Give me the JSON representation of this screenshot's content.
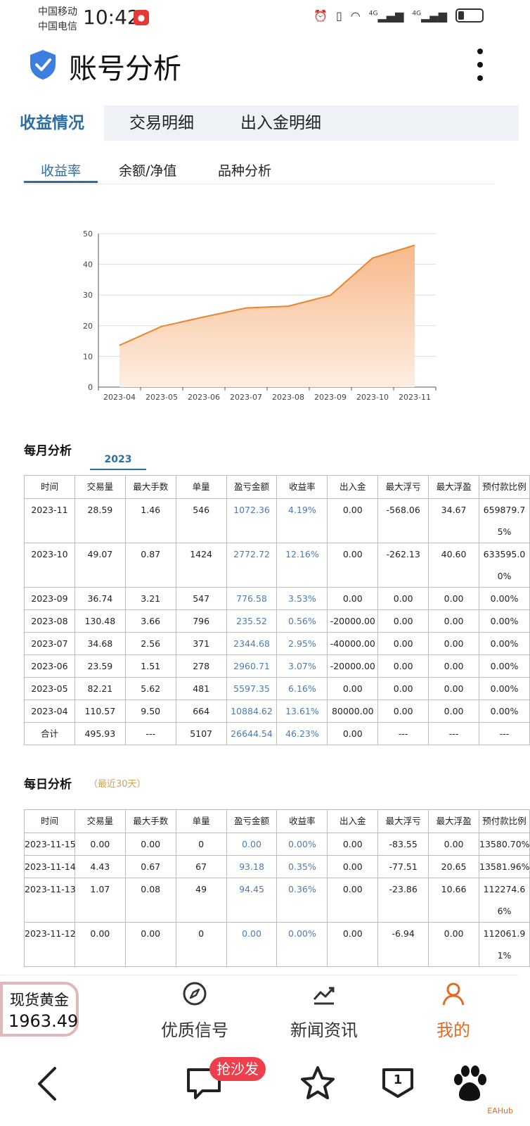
{
  "status": {
    "carrier1": "中国移动",
    "carrier2": "中国电信",
    "time": "10:42",
    "net1": "4G",
    "net2": "4G"
  },
  "header": {
    "title": "账号分析"
  },
  "tabs": [
    "收益情况",
    "交易明细",
    "出入金明细"
  ],
  "subtabs": [
    "收益率",
    "余额/净值",
    "品种分析"
  ],
  "chart_data": {
    "type": "area",
    "categories": [
      "2023-04",
      "2023-05",
      "2023-06",
      "2023-07",
      "2023-08",
      "2023-09",
      "2023-10",
      "2023-11"
    ],
    "values": [
      13.61,
      19.77,
      22.84,
      25.79,
      26.35,
      29.88,
      42.04,
      46.23
    ],
    "ylim": [
      0,
      50
    ],
    "yticks": [
      0,
      10,
      20,
      30,
      40,
      50
    ],
    "grid": true,
    "color": "#e8862f",
    "fill_top": "#f7b98a",
    "fill_bottom": "#fdeee2"
  },
  "monthly": {
    "title": "每月分析",
    "year": "2023",
    "headers": [
      "时间",
      "交易量",
      "最大手数",
      "单量",
      "盈亏金额",
      "收益率",
      "出入金",
      "最大浮亏",
      "最大浮盈",
      "预付款比例"
    ],
    "rows": [
      [
        "2023-11",
        "28.59",
        "1.46",
        "546",
        "1072.36",
        "4.19%",
        "0.00",
        "-568.06",
        "34.67",
        "659879.75%"
      ],
      [
        "2023-10",
        "49.07",
        "0.87",
        "1424",
        "2772.72",
        "12.16%",
        "0.00",
        "-262.13",
        "40.60",
        "633595.00%"
      ],
      [
        "2023-09",
        "36.74",
        "3.21",
        "547",
        "776.58",
        "3.53%",
        "0.00",
        "0.00",
        "0.00",
        "0.00%"
      ],
      [
        "2023-08",
        "130.48",
        "3.66",
        "796",
        "235.52",
        "0.56%",
        "-20000.00",
        "0.00",
        "0.00",
        "0.00%"
      ],
      [
        "2023-07",
        "34.68",
        "2.56",
        "371",
        "2344.68",
        "2.95%",
        "-40000.00",
        "0.00",
        "0.00",
        "0.00%"
      ],
      [
        "2023-06",
        "23.59",
        "1.51",
        "278",
        "2960.71",
        "3.07%",
        "-20000.00",
        "0.00",
        "0.00",
        "0.00%"
      ],
      [
        "2023-05",
        "82.21",
        "5.62",
        "481",
        "5597.35",
        "6.16%",
        "0.00",
        "0.00",
        "0.00",
        "0.00%"
      ],
      [
        "2023-04",
        "110.57",
        "9.50",
        "664",
        "10884.62",
        "13.61%",
        "80000.00",
        "0.00",
        "0.00",
        "0.00%"
      ],
      [
        "合计",
        "495.93",
        "---",
        "5107",
        "26644.54",
        "46.23%",
        "0.00",
        "---",
        "---",
        "---"
      ]
    ]
  },
  "daily": {
    "title": "每日分析",
    "hint": "（最近30天）",
    "headers": [
      "时间",
      "交易量",
      "最大手数",
      "单量",
      "盈亏金额",
      "收益率",
      "出入金",
      "最大浮亏",
      "最大浮盈",
      "预付款比例"
    ],
    "rows": [
      [
        "2023-11-15",
        "0.00",
        "0.00",
        "0",
        "0.00",
        "0.00%",
        "0.00",
        "-83.55",
        "0.00",
        "13580.70%"
      ],
      [
        "2023-11-14",
        "4.43",
        "0.67",
        "67",
        "93.18",
        "0.35%",
        "0.00",
        "-77.51",
        "20.65",
        "13581.96%"
      ],
      [
        "2023-11-13",
        "1.07",
        "0.08",
        "49",
        "94.45",
        "0.36%",
        "0.00",
        "-23.86",
        "10.66",
        "112274.66%"
      ],
      [
        "2023-11-12",
        "0.00",
        "0.00",
        "0",
        "0.00",
        "0.00%",
        "0.00",
        "-6.94",
        "0.00",
        "112061.91%"
      ]
    ]
  },
  "gold": {
    "label": "现货黄金",
    "price": "1963.49"
  },
  "nav": {
    "signals": "优质信号",
    "news": "新闻资讯",
    "mine": "我的"
  },
  "browser": {
    "promo": "抢沙发",
    "comment_count": "1",
    "watermark": "EAHub"
  }
}
